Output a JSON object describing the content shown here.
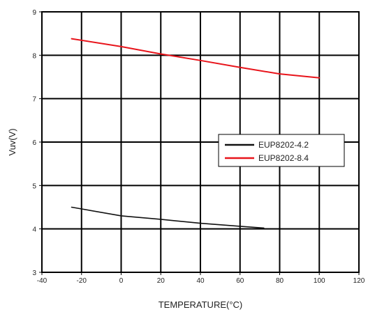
{
  "chart_data": {
    "type": "line",
    "title": "",
    "xlabel": "TEMPERATURE(°C)",
    "ylabel": "Vuv(V)",
    "xlim": [
      -40,
      120
    ],
    "ylim": [
      3,
      9
    ],
    "xticks": [
      -40,
      -20,
      0,
      20,
      40,
      60,
      80,
      100,
      120
    ],
    "yticks": [
      3,
      4,
      5,
      6,
      7,
      8,
      9
    ],
    "grid": true,
    "legend_position": "right-middle",
    "series": [
      {
        "name": "EUP8202-4.2",
        "color": "#111111",
        "x": [
          -25,
          0,
          20,
          40,
          60,
          72
        ],
        "y": [
          4.5,
          4.3,
          4.22,
          4.13,
          4.06,
          4.02
        ]
      },
      {
        "name": "EUP8202-8.4",
        "color": "#e8141b",
        "x": [
          -25,
          0,
          20,
          40,
          60,
          80,
          100
        ],
        "y": [
          8.38,
          8.2,
          8.03,
          7.88,
          7.72,
          7.57,
          7.48
        ]
      }
    ]
  }
}
